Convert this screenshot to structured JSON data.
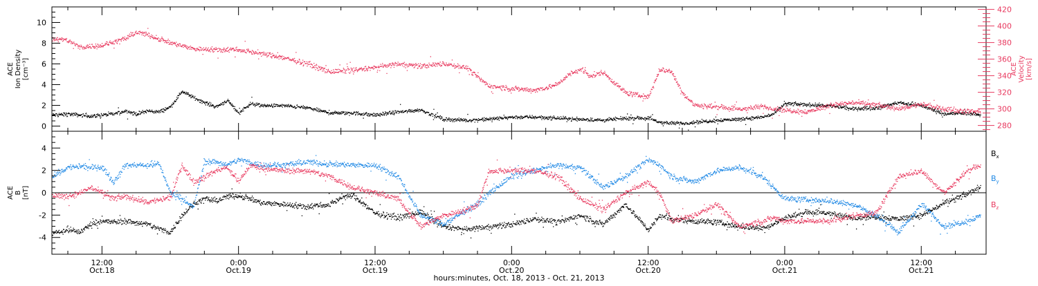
{
  "colors": {
    "black": "#000000",
    "red": "#e8385e",
    "blue": "#1e88e5"
  },
  "xlabel": "hours:minutes, Oct. 18, 2013 - Oct. 21, 2013",
  "x_ticks": [
    {
      "hours": 12,
      "time": "12:00",
      "date": "Oct.18"
    },
    {
      "hours": 24,
      "time": "0:00",
      "date": "Oct.19"
    },
    {
      "hours": 36,
      "time": "12:00",
      "date": "Oct.19"
    },
    {
      "hours": 48,
      "time": "0:00",
      "date": "Oct.20"
    },
    {
      "hours": 60,
      "time": "12:00",
      "date": "Oct.20"
    },
    {
      "hours": 72,
      "time": "0:00",
      "date": "Oct.21"
    },
    {
      "hours": 84,
      "time": "12:00",
      "date": "Oct.21"
    }
  ],
  "chart_data": [
    {
      "type": "scatter",
      "x_range_hours": [
        7.6,
        89.7
      ],
      "ylabel_left_lines": [
        "ACE",
        "Ion Density",
        "[cm⁻³]"
      ],
      "ylim_left": [
        -0.5,
        11.5
      ],
      "yticks_left": [
        "0",
        "2",
        "4",
        "6",
        "8",
        "10"
      ],
      "ylabel_right_lines": [
        "ACE",
        "Velocity",
        "[km/s]"
      ],
      "ylim_right": [
        273,
        423
      ],
      "yticks_right": [
        "280",
        "300",
        "320",
        "340",
        "360",
        "380",
        "400",
        "420"
      ],
      "legend": "none",
      "series": [
        {
          "color": "#000000",
          "axis": "left",
          "x": [
            7.6,
            9,
            11,
            13,
            14,
            15,
            16,
            17,
            18,
            19,
            20,
            21,
            22,
            23,
            24,
            25,
            26,
            28,
            30,
            32,
            34,
            36,
            38,
            40,
            42,
            44,
            46,
            48,
            50,
            52,
            54,
            56,
            58,
            60,
            61,
            62,
            63,
            64,
            66,
            68,
            70,
            71,
            72,
            74,
            76,
            78,
            80,
            82,
            84,
            86,
            88,
            89.2
          ],
          "y": [
            1.1,
            1.2,
            1.0,
            1.2,
            1.5,
            1.2,
            1.5,
            1.4,
            1.9,
            3.4,
            2.8,
            2.3,
            1.9,
            2.5,
            1.3,
            2.2,
            2.0,
            2.0,
            1.8,
            1.3,
            1.3,
            1.1,
            1.4,
            1.6,
            0.7,
            0.6,
            0.7,
            0.9,
            0.9,
            0.8,
            0.7,
            0.6,
            0.8,
            0.8,
            0.4,
            0.3,
            0.3,
            0.4,
            0.6,
            0.7,
            0.9,
            1.2,
            2.2,
            2.1,
            2.0,
            1.7,
            1.8,
            2.3,
            2.0,
            1.2,
            1.3,
            1.1
          ]
        },
        {
          "color": "#e8385e",
          "axis": "right",
          "x": [
            7.6,
            9,
            10,
            12,
            14,
            15,
            16,
            17,
            18,
            20,
            22,
            24,
            26,
            28,
            30,
            32,
            34,
            36,
            38,
            40,
            42,
            44,
            46,
            48,
            50,
            51,
            52,
            53,
            54,
            55,
            56,
            57,
            58,
            59,
            60,
            61,
            62,
            63,
            64,
            66,
            68,
            70,
            72,
            74,
            76,
            78,
            80,
            82,
            84,
            86,
            88,
            89.2
          ],
          "y": [
            385,
            383,
            375,
            377,
            385,
            393,
            390,
            385,
            380,
            373,
            372,
            372,
            367,
            362,
            355,
            345,
            347,
            350,
            355,
            352,
            355,
            350,
            328,
            325,
            323,
            326,
            330,
            342,
            348,
            340,
            345,
            332,
            320,
            317,
            315,
            348,
            346,
            320,
            305,
            303,
            300,
            303,
            299,
            297,
            305,
            308,
            305,
            301,
            306,
            300,
            298,
            297
          ]
        }
      ]
    },
    {
      "type": "scatter",
      "x_range_hours": [
        7.6,
        89.7
      ],
      "ylabel_left_lines": [
        "ACE",
        "B",
        "[nT]"
      ],
      "ylim_left": [
        -5.5,
        5.5
      ],
      "yticks_left": [
        "-4",
        "-2",
        "0",
        "2",
        "4"
      ],
      "zero_line": true,
      "legend": "right",
      "series": [
        {
          "name": "Bx",
          "legend_main": "B",
          "legend_sub": "x",
          "color": "#000000",
          "x": [
            7.6,
            9,
            10,
            11,
            12,
            13,
            14,
            16,
            17,
            18,
            19,
            20,
            21,
            22,
            23,
            24,
            25,
            26,
            28,
            30,
            32,
            33,
            34,
            36,
            38,
            40,
            42,
            44,
            45,
            46,
            48,
            50,
            52,
            54,
            56,
            58,
            60,
            61,
            62,
            64,
            66,
            68,
            70,
            71,
            72,
            74,
            76,
            77,
            78,
            80,
            82,
            84,
            86,
            88,
            89.2
          ],
          "y": [
            -3.6,
            -3.3,
            -3.5,
            -2.8,
            -2.5,
            -2.6,
            -2.5,
            -2.8,
            -3.2,
            -3.5,
            -2.0,
            -1.0,
            -0.5,
            -0.7,
            -0.3,
            -0.2,
            -0.5,
            -0.9,
            -1.0,
            -1.2,
            -1.0,
            -0.4,
            -0.2,
            -1.8,
            -2.2,
            -1.7,
            -3.0,
            -3.3,
            -3.1,
            -3.0,
            -2.8,
            -2.3,
            -2.6,
            -2.0,
            -2.8,
            -1.0,
            -3.3,
            -2.0,
            -2.3,
            -2.5,
            -2.6,
            -3.0,
            -3.1,
            -2.8,
            -2.2,
            -1.7,
            -1.8,
            -2.1,
            -2.2,
            -2.1,
            -2.3,
            -2.0,
            -0.9,
            -0.1,
            0.6
          ]
        },
        {
          "name": "By",
          "legend_main": "B",
          "legend_sub": "y",
          "color": "#1e88e5",
          "x": [
            7.6,
            9,
            10,
            11,
            12,
            13,
            14,
            16,
            17,
            18,
            19,
            20,
            21,
            22,
            23,
            24,
            26,
            28,
            30,
            32,
            34,
            36,
            38,
            40,
            42,
            44,
            45,
            46,
            48,
            50,
            52,
            54,
            56,
            58,
            60,
            61,
            62,
            64,
            66,
            68,
            70,
            71,
            72,
            74,
            76,
            78,
            80,
            82,
            84,
            86,
            88,
            89.2
          ],
          "y": [
            1.5,
            2.3,
            2.4,
            2.3,
            2.3,
            1.0,
            2.5,
            2.5,
            2.6,
            0.0,
            -0.5,
            -1.3,
            2.8,
            2.8,
            2.5,
            3.0,
            2.5,
            2.5,
            2.8,
            2.6,
            2.5,
            2.5,
            1.5,
            -2.0,
            -2.8,
            -1.5,
            -1.0,
            0.0,
            1.5,
            2.0,
            2.5,
            2.3,
            0.5,
            1.5,
            3.0,
            2.5,
            1.5,
            1.0,
            2.0,
            2.3,
            1.5,
            0.5,
            -0.5,
            -0.6,
            -0.7,
            -1.0,
            -2.0,
            -3.5,
            -1.0,
            -3.0,
            -2.5,
            -2.0
          ]
        },
        {
          "name": "Bz",
          "legend_main": "B",
          "legend_sub": "z",
          "color": "#e8385e",
          "x": [
            7.6,
            9,
            10,
            11,
            12,
            13,
            14,
            16,
            18,
            19,
            20,
            21,
            22,
            23,
            24,
            25,
            26,
            28,
            30,
            32,
            34,
            36,
            38,
            40,
            42,
            44,
            45,
            46,
            48,
            50,
            52,
            54,
            56,
            58,
            60,
            61,
            62,
            64,
            66,
            68,
            70,
            71,
            72,
            74,
            76,
            78,
            80,
            82,
            84,
            86,
            88,
            89.2
          ],
          "y": [
            -0.2,
            -0.3,
            0.0,
            0.5,
            0.0,
            -0.5,
            -0.3,
            -0.8,
            -0.4,
            2.5,
            1.0,
            1.5,
            2.0,
            2.3,
            1.0,
            2.5,
            2.2,
            2.0,
            2.0,
            1.5,
            0.5,
            0.0,
            -0.5,
            -3.0,
            -2.0,
            -1.5,
            -1.0,
            2.0,
            2.0,
            2.0,
            1.5,
            -0.5,
            -1.5,
            0.0,
            1.0,
            0.0,
            -2.5,
            -2.0,
            -1.0,
            -3.0,
            -2.5,
            -2.2,
            -2.5,
            -2.5,
            -2.5,
            -2.0,
            -1.8,
            1.5,
            2.0,
            0.0,
            2.0,
            2.5
          ]
        }
      ]
    }
  ]
}
